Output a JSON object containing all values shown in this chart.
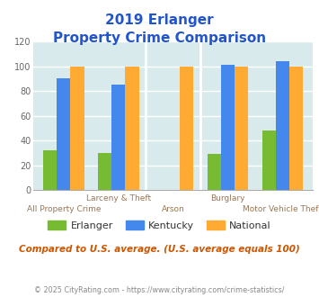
{
  "title_line1": "2019 Erlanger",
  "title_line2": "Property Crime Comparison",
  "categories": [
    "All Property Crime",
    "Larceny & Theft",
    "Arson",
    "Burglary",
    "Motor Vehicle Theft"
  ],
  "cat_top_labels": [
    "",
    "Larceny & Theft",
    "",
    "Burglary",
    ""
  ],
  "cat_bot_labels": [
    "All Property Crime",
    "",
    "Arson",
    "",
    "Motor Vehicle Theft"
  ],
  "erlanger": [
    32,
    30,
    null,
    29,
    48
  ],
  "kentucky": [
    90,
    85,
    null,
    101,
    104
  ],
  "national": [
    100,
    100,
    100,
    100,
    100
  ],
  "erlanger_color": "#77bb33",
  "kentucky_color": "#4488ee",
  "national_color": "#ffaa33",
  "ylim": [
    0,
    120
  ],
  "yticks": [
    0,
    20,
    40,
    60,
    80,
    100,
    120
  ],
  "bg_color": "#d8eaec",
  "legend_note": "Compared to U.S. average. (U.S. average equals 100)",
  "footer": "© 2025 CityRating.com - https://www.cityrating.com/crime-statistics/",
  "bar_width": 0.25,
  "title_color": "#2255cc",
  "label_color": "#997755",
  "note_color": "#cc5500",
  "footer_color": "#888888"
}
